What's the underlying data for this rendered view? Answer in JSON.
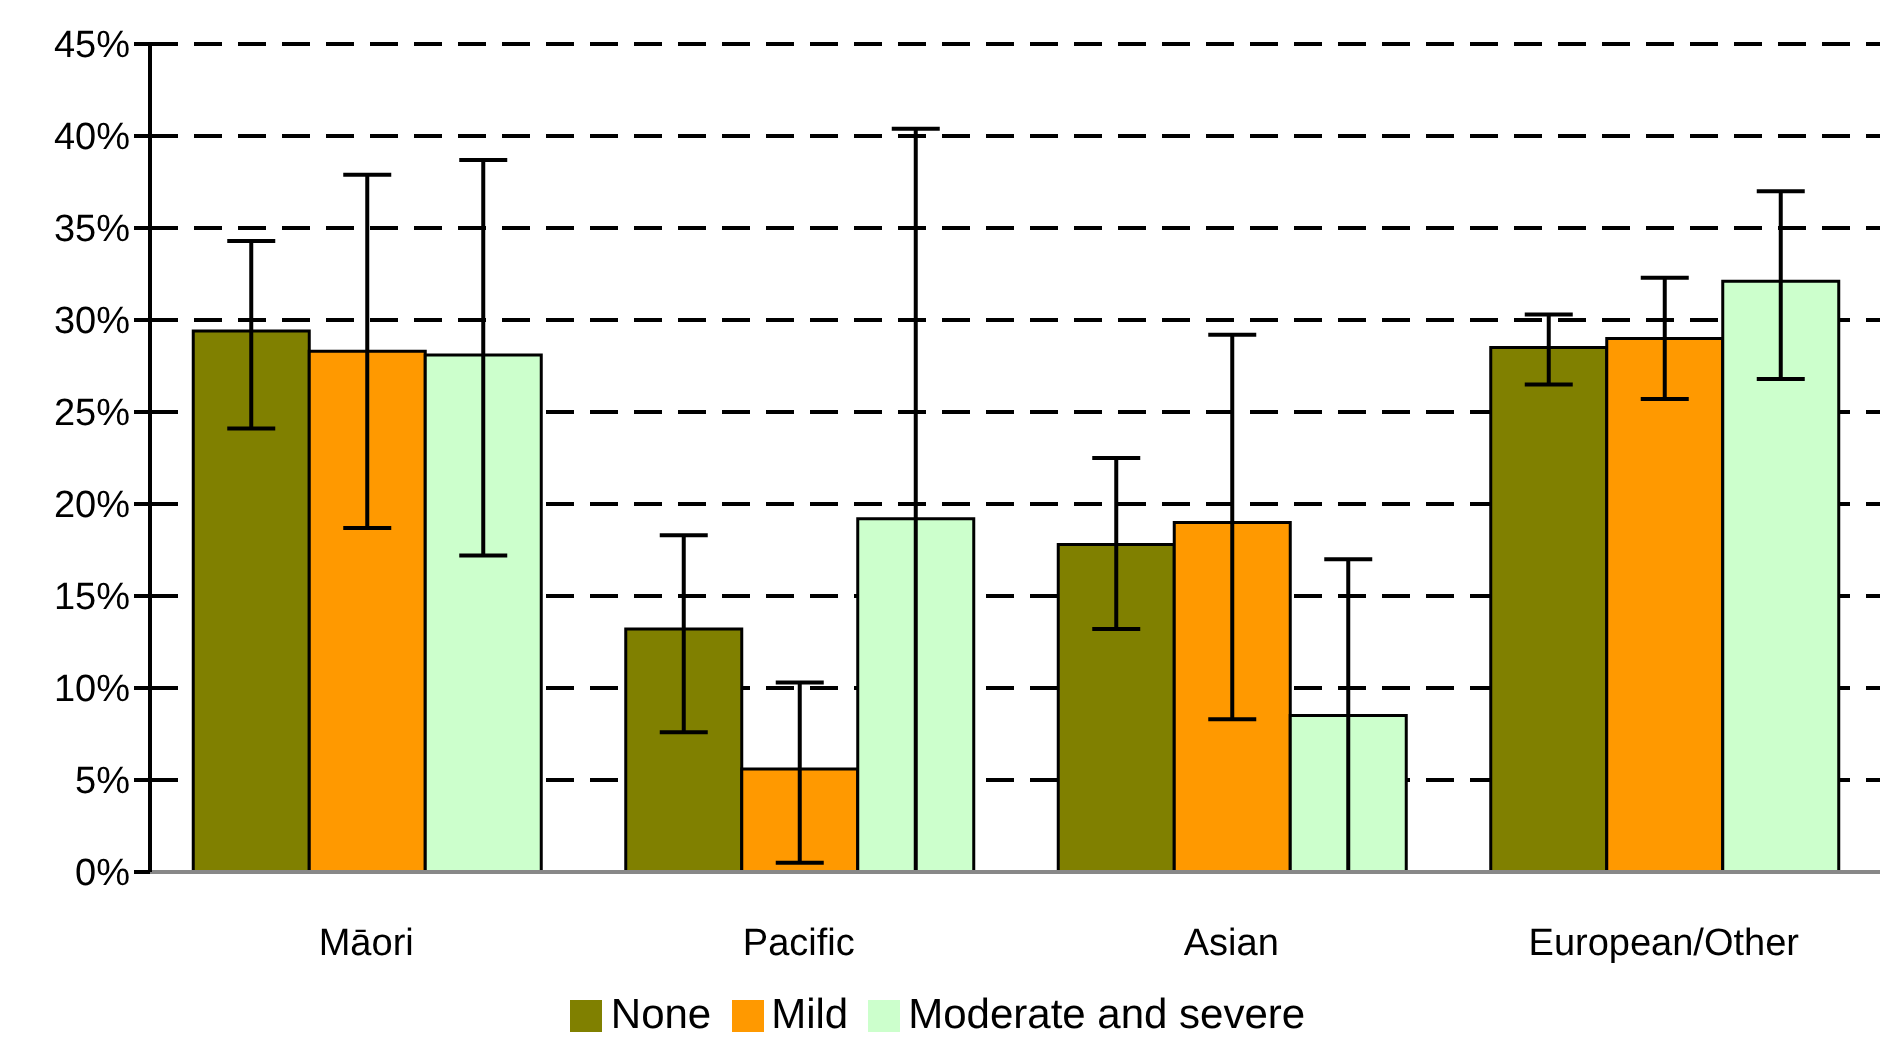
{
  "chart_data": {
    "type": "bar",
    "categories": [
      "Māori",
      "Pacific",
      "Asian",
      "European/Other"
    ],
    "series": [
      {
        "name": "None",
        "color": "#808000",
        "values": [
          29.4,
          13.2,
          17.8,
          28.5
        ],
        "errors": [
          [
            24.1,
            34.3
          ],
          [
            7.6,
            18.3
          ],
          [
            13.2,
            22.5
          ],
          [
            26.5,
            30.3
          ]
        ]
      },
      {
        "name": "Mild",
        "color": "#ff9900",
        "values": [
          28.3,
          5.6,
          19.0,
          29.0
        ],
        "errors": [
          [
            18.7,
            37.9
          ],
          [
            0.5,
            10.3
          ],
          [
            8.3,
            29.2
          ],
          [
            25.7,
            32.3
          ]
        ]
      },
      {
        "name": "Moderate and severe",
        "color": "#ccffcc",
        "values": [
          28.1,
          19.2,
          8.5,
          32.1
        ],
        "errors": [
          [
            17.2,
            38.7
          ],
          [
            0,
            40.4
          ],
          [
            0,
            17.0
          ],
          [
            26.8,
            37.0
          ]
        ]
      }
    ],
    "ylim": [
      0,
      45
    ],
    "yticks": [
      {
        "value": 0,
        "label": "0%"
      },
      {
        "value": 5,
        "label": "5%"
      },
      {
        "value": 10,
        "label": "10%"
      },
      {
        "value": 15,
        "label": "15%"
      },
      {
        "value": 20,
        "label": "20%"
      },
      {
        "value": 25,
        "label": "25%"
      },
      {
        "value": 30,
        "label": "30%"
      },
      {
        "value": 35,
        "label": "35%"
      },
      {
        "value": 40,
        "label": "40%"
      },
      {
        "value": 45,
        "label": "45%"
      }
    ],
    "grid": "y",
    "legend": "bottom"
  }
}
